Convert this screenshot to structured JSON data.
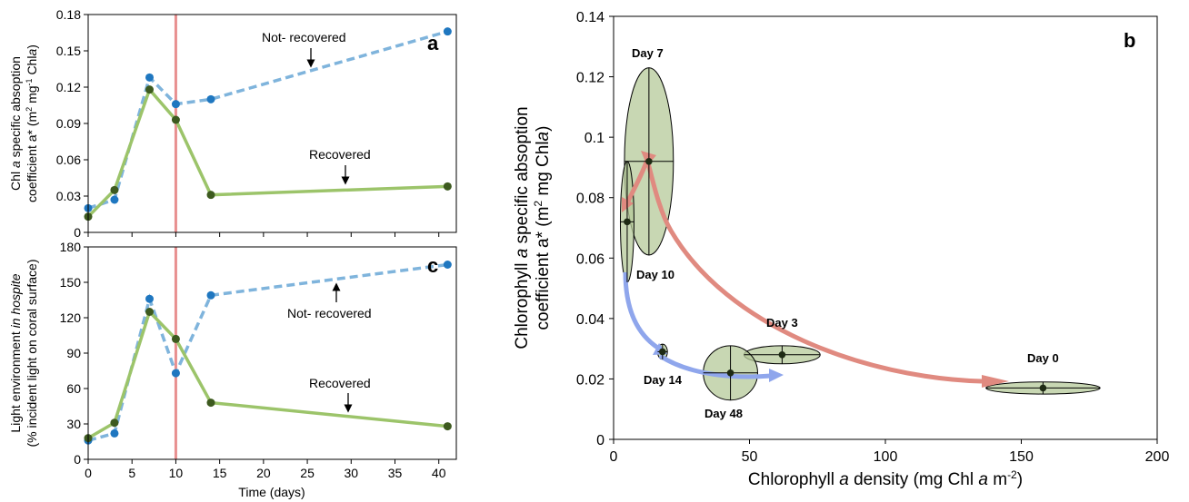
{
  "colors": {
    "not_recovered": "#7fb4dc",
    "not_recovered_marker": "#1f77c0",
    "recovered": "#9cc46a",
    "recovered_marker": "#3d5a1f",
    "event_line": "#e89090",
    "ellipse_fill": "#b5c99a",
    "arrow_red": "#e08a80",
    "arrow_blue": "#8fa6ec"
  },
  "chart_data": [
    {
      "panel": "a",
      "type": "line",
      "title": "",
      "xlabel": "",
      "ylabel_line1_pre": "Chl ",
      "ylabel_line1_italic": "a",
      "ylabel_line1_post": " specific absoption",
      "ylabel_line2_pre": "coefficient a* (m",
      "ylabel_line2_sup1": "2",
      "ylabel_line2_mid": " mg",
      "ylabel_line2_sup2": "-1",
      "ylabel_line2_post": " Chl",
      "ylabel_line2_italic": "a",
      "ylabel_line2_end": ")",
      "xlim": [
        0,
        42
      ],
      "ylim": [
        0,
        0.18
      ],
      "xticks": [
        0,
        5,
        10,
        15,
        20,
        25,
        30,
        35,
        40
      ],
      "yticks": [
        0,
        0.03,
        0.06,
        0.09,
        0.12,
        0.15,
        0.18
      ],
      "ytick_labels": [
        "0",
        "0.03",
        "0.06",
        "0.09",
        "0.12",
        "0.15",
        "0.18"
      ],
      "vline_x": 10,
      "series": [
        {
          "key": "not_recovered",
          "style": "dashed",
          "x": [
            0,
            3,
            7,
            10,
            14,
            41
          ],
          "y": [
            0.02,
            0.027,
            0.128,
            0.106,
            0.11,
            0.166
          ]
        },
        {
          "key": "recovered",
          "style": "solid",
          "x": [
            0,
            3,
            7,
            10,
            14,
            41
          ],
          "y": [
            0.013,
            0.035,
            0.118,
            0.093,
            0.031,
            0.038
          ]
        }
      ],
      "annotations": [
        {
          "text": "Not- recovered",
          "arrow": "down"
        },
        {
          "text": "Recovered",
          "arrow": "down"
        }
      ]
    },
    {
      "panel": "c",
      "type": "line",
      "title": "",
      "xlabel": "Time (days)",
      "ylabel_line1_pre": "Light environment ",
      "ylabel_line1_italic": "in hospite",
      "ylabel_line2": "(% incident light on coral surface)",
      "xlim": [
        0,
        42
      ],
      "ylim": [
        0,
        180
      ],
      "xticks": [
        0,
        5,
        10,
        15,
        20,
        25,
        30,
        35,
        40
      ],
      "yticks": [
        0,
        30,
        60,
        90,
        120,
        150,
        180
      ],
      "ytick_labels": [
        "0",
        "30",
        "60",
        "90",
        "120",
        "150",
        "180"
      ],
      "vline_x": 10,
      "series": [
        {
          "key": "not_recovered",
          "style": "dashed",
          "x": [
            0,
            3,
            7,
            10,
            14,
            41
          ],
          "y": [
            16,
            22,
            136,
            73,
            139,
            165
          ]
        },
        {
          "key": "recovered",
          "style": "solid",
          "x": [
            0,
            3,
            7,
            10,
            14,
            41
          ],
          "y": [
            18,
            31,
            125,
            102,
            48,
            28
          ]
        }
      ],
      "annotations": [
        {
          "text": "Not- recovered",
          "arrow": "up"
        },
        {
          "text": "Recovered",
          "arrow": "down"
        }
      ]
    },
    {
      "panel": "b",
      "type": "scatter",
      "title": "",
      "xlabel_pre": "Chlorophyll ",
      "xlabel_italic": "a",
      "xlabel_mid": " density (mg Chl ",
      "xlabel_italic2": "a",
      "xlabel_post": " m",
      "xlabel_sup": "-2",
      "xlabel_end": ")",
      "ylabel_line1_pre": "Chlorophyll ",
      "ylabel_line1_italic": "a",
      "ylabel_line1_post": " specific absoption",
      "ylabel_line2": "coefficient a* (m",
      "ylabel_line2_sup": "2",
      "ylabel_line2_mid": " mg Chl",
      "ylabel_line2_italic": "a",
      "ylabel_line2_end": ")",
      "xlim": [
        0,
        200
      ],
      "ylim": [
        0,
        0.14
      ],
      "xticks": [
        0,
        50,
        100,
        150,
        200
      ],
      "xtick_labels": [
        "0",
        "50",
        "100",
        "150",
        "200"
      ],
      "yticks": [
        0,
        0.02,
        0.04,
        0.06,
        0.08,
        0.1,
        0.12,
        0.14
      ],
      "ytick_labels": [
        "0",
        "0.02",
        "0.04",
        "0.06",
        "0.08",
        "0.1",
        "0.12",
        "0.14"
      ],
      "points": [
        {
          "label": "Day 0",
          "x": 158,
          "y": 0.017,
          "xerr": 21,
          "yerr": 0.002
        },
        {
          "label": "Day 3",
          "x": 62,
          "y": 0.028,
          "xerr": 14,
          "yerr": 0.003
        },
        {
          "label": "Day 7",
          "x": 13,
          "y": 0.092,
          "xerr": 9,
          "yerr": 0.031
        },
        {
          "label": "Day 10",
          "x": 5,
          "y": 0.072,
          "xerr": 2.5,
          "yerr": 0.02
        },
        {
          "label": "Day 14",
          "x": 18,
          "y": 0.029,
          "xerr": 1.8,
          "yerr": 0.0025
        },
        {
          "label": "Day 48",
          "x": 43,
          "y": 0.022,
          "xerr": 10,
          "yerr": 0.009
        }
      ]
    }
  ]
}
